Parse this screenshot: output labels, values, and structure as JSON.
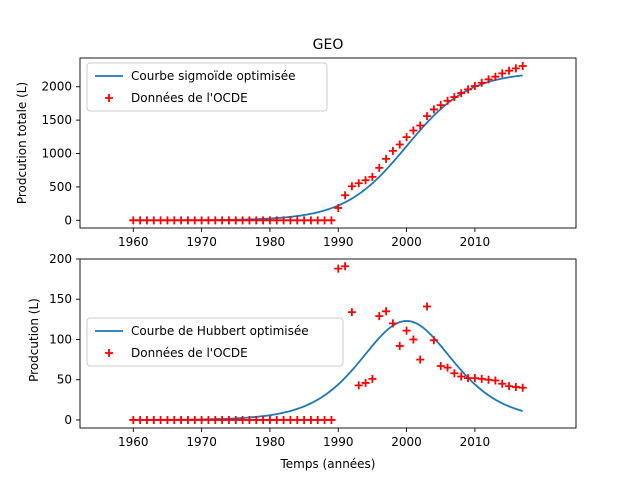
{
  "chart_data": [
    {
      "type": "line",
      "title": "GEO",
      "xlabel": "",
      "ylabel": "Prodcution totale (L)",
      "xlim": [
        1952.2,
        2024.8
      ],
      "ylim": [
        -115,
        2430
      ],
      "xticks": [
        1960,
        1970,
        1980,
        1990,
        2000,
        2010
      ],
      "yticks": [
        0,
        500,
        1000,
        1500,
        2000
      ],
      "legend_position": "top-left",
      "series": [
        {
          "name": "Courbe sigmoïde optimisée",
          "style": "line",
          "color": "#1f77b4",
          "model": {
            "kind": "sigmoid",
            "K": 2220,
            "x0": 2000.0,
            "r": 0.22
          },
          "x_range": [
            1960,
            2017
          ]
        },
        {
          "name": "Données de l'OCDE",
          "style": "marker-plus",
          "color": "#ff0000",
          "x": [
            1960,
            1961,
            1962,
            1963,
            1964,
            1965,
            1966,
            1967,
            1968,
            1969,
            1970,
            1971,
            1972,
            1973,
            1974,
            1975,
            1976,
            1977,
            1978,
            1979,
            1980,
            1981,
            1982,
            1983,
            1984,
            1985,
            1986,
            1987,
            1988,
            1989,
            1990,
            1991,
            1992,
            1993,
            1994,
            1995,
            1996,
            1997,
            1998,
            1999,
            2000,
            2001,
            2002,
            2003,
            2004,
            2005,
            2006,
            2007,
            2008,
            2009,
            2010,
            2011,
            2012,
            2013,
            2014,
            2015,
            2016,
            2017
          ],
          "y": [
            0,
            0,
            0,
            0,
            0,
            0,
            0,
            0,
            0,
            0,
            0,
            0,
            0,
            0,
            0,
            0,
            0,
            0,
            0,
            0,
            0,
            0,
            0,
            0,
            0,
            0,
            0,
            0,
            0,
            0,
            185,
            375,
            510,
            555,
            600,
            650,
            785,
            920,
            1040,
            1135,
            1245,
            1345,
            1420,
            1560,
            1660,
            1725,
            1790,
            1845,
            1905,
            1960,
            2010,
            2060,
            2110,
            2150,
            2200,
            2240,
            2275,
            2310
          ]
        }
      ]
    },
    {
      "type": "line",
      "title": "",
      "xlabel": "Temps (années)",
      "ylabel": "Prodcution (L)",
      "xlim": [
        1952.2,
        2024.8
      ],
      "ylim": [
        -10,
        200
      ],
      "xticks": [
        1960,
        1970,
        1980,
        1990,
        2000,
        2010
      ],
      "yticks": [
        0,
        50,
        100,
        150,
        200
      ],
      "legend_position": "center-left",
      "series": [
        {
          "name": "Courbe de Hubbert optimisée",
          "style": "line",
          "color": "#1f77b4",
          "model": {
            "kind": "hubbert",
            "peak": 123,
            "x0": 2000.0,
            "r": 0.22
          },
          "x_range": [
            1960,
            2017
          ]
        },
        {
          "name": "Données de l'OCDE",
          "style": "marker-plus",
          "color": "#ff0000",
          "x": [
            1960,
            1961,
            1962,
            1963,
            1964,
            1965,
            1966,
            1967,
            1968,
            1969,
            1970,
            1971,
            1972,
            1973,
            1974,
            1975,
            1976,
            1977,
            1978,
            1979,
            1980,
            1981,
            1982,
            1983,
            1984,
            1985,
            1986,
            1987,
            1988,
            1989,
            1990,
            1991,
            1992,
            1993,
            1994,
            1995,
            1996,
            1997,
            1998,
            1999,
            2000,
            2001,
            2002,
            2003,
            2004,
            2005,
            2006,
            2007,
            2008,
            2009,
            2010,
            2011,
            2012,
            2013,
            2014,
            2015,
            2016,
            2017
          ],
          "y": [
            0,
            0,
            0,
            0,
            0,
            0,
            0,
            0,
            0,
            0,
            0,
            0,
            0,
            0,
            0,
            0,
            0,
            0,
            0,
            0,
            0,
            0,
            0,
            0,
            0,
            0,
            0,
            0,
            0,
            0,
            188,
            191,
            134,
            43,
            46,
            51,
            129,
            135,
            120,
            92,
            111,
            100,
            75,
            141,
            99,
            67,
            65,
            58,
            54,
            52,
            52,
            51,
            50,
            49,
            45,
            42,
            41,
            40
          ]
        }
      ]
    }
  ]
}
